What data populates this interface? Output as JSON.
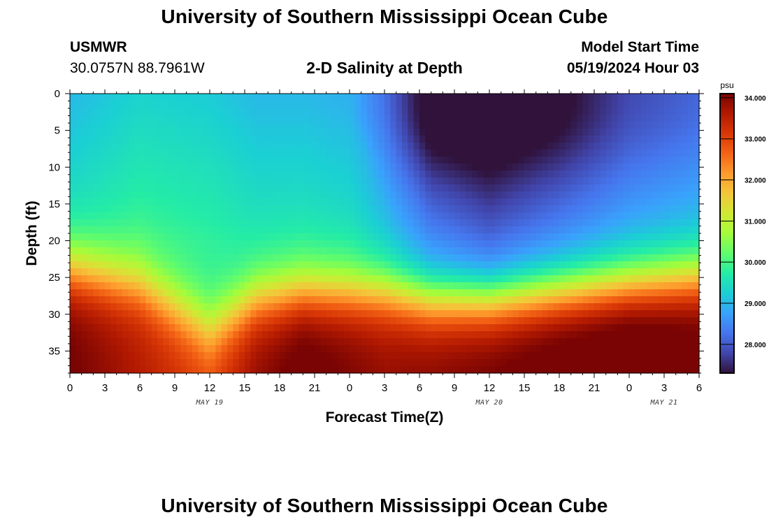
{
  "header": {
    "title": "University of Southern Mississippi Ocean Cube",
    "station_id": "USMWR",
    "station_coords": "30.0757N  88.7961W",
    "subtitle": "2-D Salinity at Depth",
    "model_start_label": "Model Start Time",
    "model_start_value": "05/19/2024 Hour 03"
  },
  "footer": {
    "title": "University of Southern Mississippi Ocean Cube"
  },
  "chart_data": {
    "type": "heatmap",
    "title": "2-D Salinity at Depth",
    "xlabel": "Forecast Time(Z)",
    "ylabel": "Depth (ft)",
    "x_ticks": [
      "0",
      "3",
      "6",
      "9",
      "12",
      "15",
      "18",
      "21",
      "0",
      "3",
      "6",
      "9",
      "12",
      "15",
      "18",
      "21",
      "0",
      "3",
      "6"
    ],
    "x_range_hours": [
      0,
      54
    ],
    "x_date_labels": [
      {
        "label": "MAY 19",
        "hour": 12
      },
      {
        "label": "MAY 20",
        "hour": 36
      },
      {
        "label": "MAY 21",
        "hour": 51
      }
    ],
    "y_ticks": [
      0,
      5,
      10,
      15,
      20,
      25,
      30,
      35
    ],
    "y_range": [
      0,
      38
    ],
    "y_inverted": true,
    "colorbar": {
      "unit": "psu",
      "range": [
        27.3,
        34.1
      ],
      "ticks": [
        "34.000",
        "33.000",
        "32.000",
        "31.000",
        "30.000",
        "29.000",
        "28.000"
      ],
      "colors": [
        "#30123b",
        "#4145ab",
        "#4675ed",
        "#39a2fc",
        "#1bcfd4",
        "#24eca6",
        "#61fc6c",
        "#a4fc3b",
        "#d1e834",
        "#f3c63a",
        "#fe9b2d",
        "#f36315",
        "#d93806",
        "#b11901",
        "#7a0403"
      ]
    },
    "profile_times_hours": [
      0,
      6,
      12,
      16,
      20,
      24,
      27,
      31,
      36,
      42,
      48,
      54
    ],
    "profile_surface_psu": [
      29.0,
      29.3,
      29.2,
      29.0,
      29.0,
      28.9,
      28.5,
      27.8,
      27.4,
      27.8,
      28.2,
      28.4
    ],
    "profile_bottom_psu": [
      33.6,
      33.0,
      32.4,
      33.3,
      33.8,
      33.5,
      33.3,
      33.4,
      33.6,
      33.9,
      34.1,
      33.8
    ],
    "profile_halocline_ft": [
      24,
      26,
      32,
      28,
      27,
      27,
      27,
      28,
      28,
      27,
      26,
      25
    ],
    "profile_cap_psu": [
      0,
      0,
      0,
      0,
      0,
      0,
      -0.3,
      -0.9,
      -0.8,
      -0.7,
      -0.4,
      -0.3
    ],
    "profile_cap_depth_ft": [
      0,
      0,
      0,
      0,
      0,
      0,
      9,
      10,
      10,
      10,
      10,
      9
    ]
  }
}
